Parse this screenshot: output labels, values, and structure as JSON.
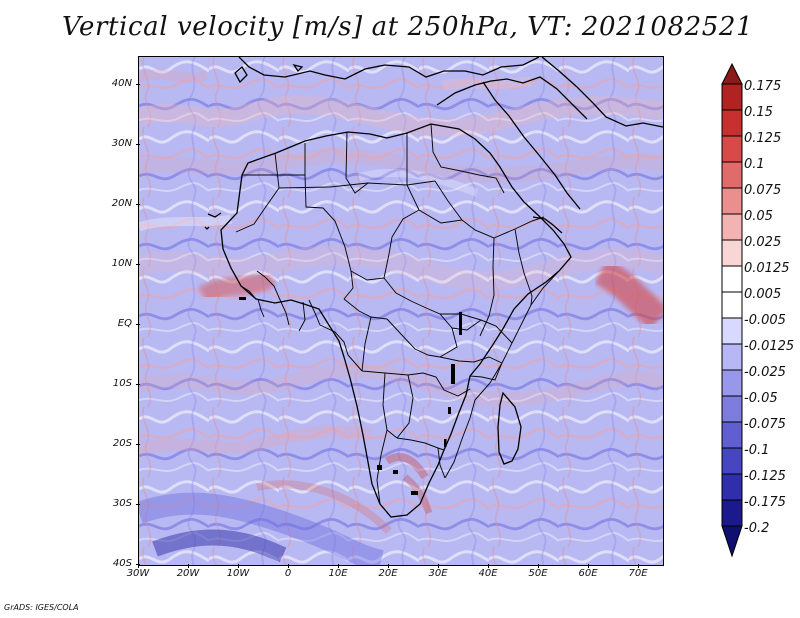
{
  "title": "Vertical velocity [m/s] at 250hPa, VT: 2021082521",
  "map": {
    "lat_labels": [
      "40N",
      "30N",
      "20N",
      "10N",
      "EQ",
      "10S",
      "20S",
      "30S",
      "40S"
    ],
    "lon_labels": [
      "30W",
      "20W",
      "10W",
      "0",
      "10E",
      "20E",
      "30E",
      "40E",
      "50E",
      "60E",
      "70E"
    ]
  },
  "colorbar": {
    "labels": [
      "0.175",
      "0.15",
      "0.125",
      "0.1",
      "0.075",
      "0.05",
      "0.025",
      "0.0125",
      "0.005",
      "-0.005",
      "-0.0125",
      "-0.025",
      "-0.05",
      "-0.075",
      "-0.1",
      "-0.125",
      "-0.175",
      "-0.2"
    ],
    "colors": [
      "#8b1a1a",
      "#b22222",
      "#c83030",
      "#d84a4a",
      "#e06b6b",
      "#ea8e8e",
      "#f3b3b3",
      "#f9d6d6",
      "#ffffff",
      "#ffffff",
      "#d9d9ff",
      "#b7b7f5",
      "#9898ea",
      "#7d7de0",
      "#5f5fd2",
      "#4646c0",
      "#2f2fac",
      "#1a1a8e",
      "#0f0f70"
    ]
  },
  "footer": "GrADS: IGES/COLA"
}
